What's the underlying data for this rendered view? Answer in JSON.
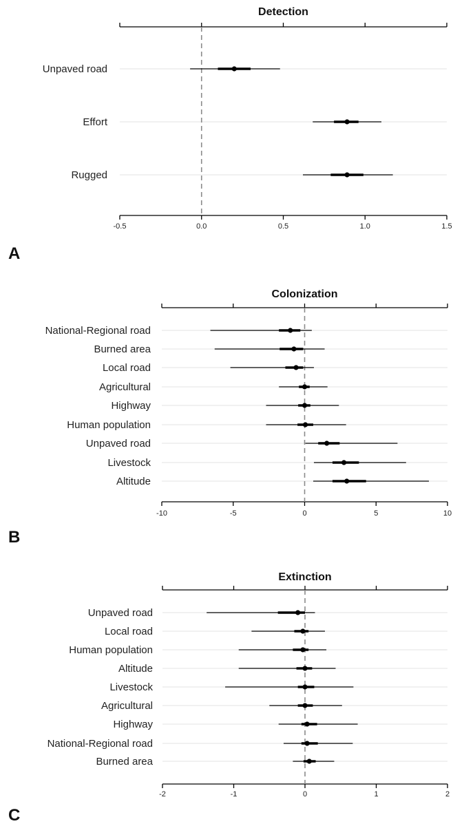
{
  "chart_data": [
    {
      "type": "forest",
      "panel_label": "A",
      "title": "Detection",
      "xlim": [
        -0.5,
        1.5
      ],
      "x_ticks": [
        -0.5,
        0.0,
        0.5,
        1.0,
        1.5
      ],
      "x_tick_labels": [
        "-0.5",
        "0.0",
        "0.5",
        "1.0",
        "1.5"
      ],
      "reference_line": 0,
      "categories": [
        "Unpaved road",
        "Effort",
        "Rugged"
      ],
      "estimates": [
        0.2,
        0.89,
        0.89
      ],
      "inner_intervals": [
        [
          0.1,
          0.3
        ],
        [
          0.81,
          0.96
        ],
        [
          0.79,
          0.99
        ]
      ],
      "outer_intervals": [
        [
          -0.07,
          0.48
        ],
        [
          0.68,
          1.1
        ],
        [
          0.62,
          1.17
        ]
      ]
    },
    {
      "type": "forest",
      "panel_label": "B",
      "title": "Colonization",
      "xlim": [
        -10,
        10
      ],
      "x_ticks": [
        -10,
        -5,
        0,
        5,
        10
      ],
      "x_tick_labels": [
        "-10",
        "-5",
        "0",
        "5",
        "10"
      ],
      "reference_line": 0,
      "categories": [
        "National-Regional road",
        "Burned area",
        "Local road",
        "Agricultural",
        "Highway",
        "Human population",
        "Unpaved road",
        "Livestock",
        "Altitude"
      ],
      "estimates": [
        -1.0,
        -0.75,
        -0.6,
        0.0,
        0.0,
        0.05,
        1.55,
        2.75,
        2.95
      ],
      "inner_intervals": [
        [
          -1.8,
          -0.3
        ],
        [
          -1.75,
          -0.1
        ],
        [
          -1.35,
          -0.1
        ],
        [
          -0.4,
          0.35
        ],
        [
          -0.45,
          0.4
        ],
        [
          -0.5,
          0.6
        ],
        [
          0.95,
          2.45
        ],
        [
          1.95,
          3.8
        ],
        [
          1.95,
          4.3
        ]
      ],
      "outer_intervals": [
        [
          -6.6,
          0.5
        ],
        [
          -6.3,
          1.4
        ],
        [
          -5.2,
          0.65
        ],
        [
          -1.8,
          1.6
        ],
        [
          -2.7,
          2.4
        ],
        [
          -2.7,
          2.9
        ],
        [
          0.05,
          6.5
        ],
        [
          0.65,
          7.1
        ],
        [
          0.6,
          8.7
        ]
      ]
    },
    {
      "type": "forest",
      "panel_label": "C",
      "title": "Extinction",
      "xlim": [
        -2,
        2
      ],
      "x_ticks": [
        -2,
        -1,
        0,
        1,
        2
      ],
      "x_tick_labels": [
        "-2",
        "-1",
        "0",
        "1",
        "2"
      ],
      "reference_line": 0,
      "categories": [
        "Unpaved road",
        "Local road",
        "Human population",
        "Altitude",
        "Livestock",
        "Agricultural",
        "Highway",
        "National-Regional road",
        "Burned area"
      ],
      "estimates": [
        -0.1,
        -0.03,
        -0.03,
        0.0,
        0.0,
        0.0,
        0.03,
        0.03,
        0.06
      ],
      "inner_intervals": [
        [
          -0.38,
          0.0
        ],
        [
          -0.15,
          0.05
        ],
        [
          -0.17,
          0.05
        ],
        [
          -0.12,
          0.1
        ],
        [
          -0.1,
          0.13
        ],
        [
          -0.1,
          0.11
        ],
        [
          -0.05,
          0.17
        ],
        [
          -0.05,
          0.18
        ],
        [
          -0.02,
          0.15
        ]
      ],
      "outer_intervals": [
        [
          -1.38,
          0.14
        ],
        [
          -0.75,
          0.28
        ],
        [
          -0.93,
          0.3
        ],
        [
          -0.93,
          0.43
        ],
        [
          -1.12,
          0.68
        ],
        [
          -0.5,
          0.52
        ],
        [
          -0.37,
          0.74
        ],
        [
          -0.3,
          0.67
        ],
        [
          -0.17,
          0.41
        ]
      ]
    }
  ]
}
